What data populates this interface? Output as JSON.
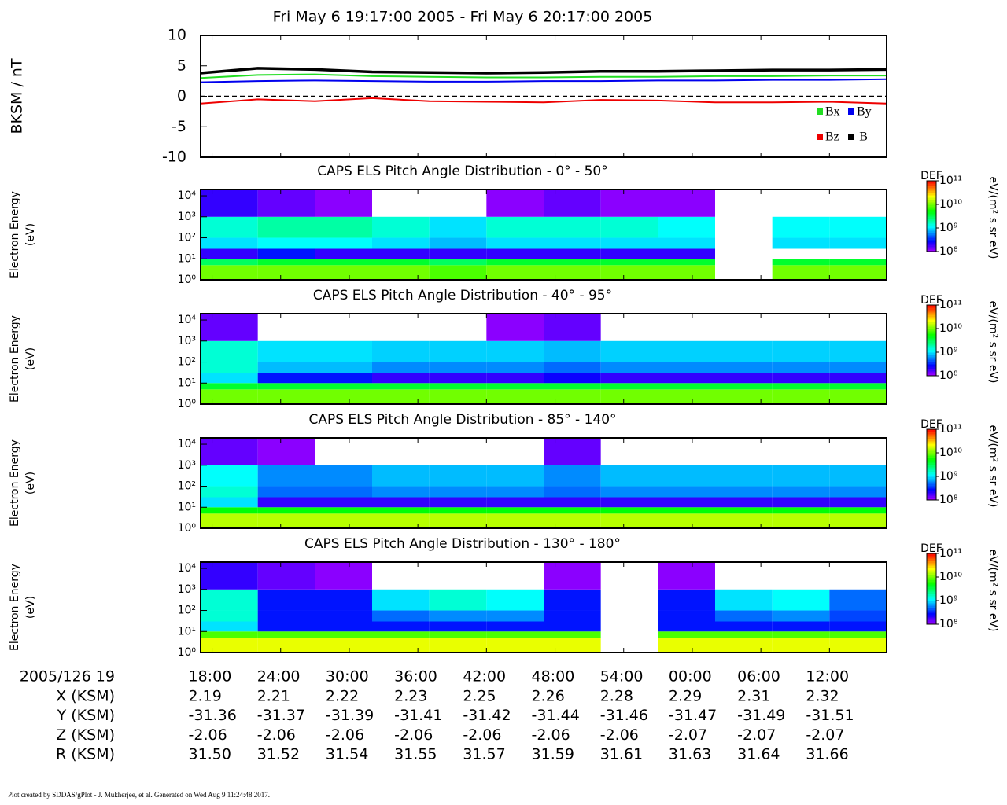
{
  "title": "Fri May 6 19:17:00 2005 - Fri May 6 20:17:00 2005",
  "chart_data": [
    {
      "type": "line",
      "ylabel": "BKSM / nT",
      "xlim": [
        17,
        77
      ],
      "ylim": [
        -10,
        10
      ],
      "yticks": [
        -10,
        -5,
        0,
        5,
        10
      ],
      "x": [
        17,
        22,
        27,
        32,
        37,
        42,
        47,
        52,
        57,
        62,
        67,
        72,
        77
      ],
      "series": [
        {
          "name": "Bx",
          "color": "#22dd22",
          "values": [
            3.0,
            3.5,
            3.6,
            3.3,
            3.2,
            3.1,
            3.1,
            3.2,
            3.2,
            3.3,
            3.3,
            3.4,
            3.4
          ]
        },
        {
          "name": "By",
          "color": "#0000ee",
          "values": [
            2.3,
            2.5,
            2.6,
            2.5,
            2.4,
            2.4,
            2.5,
            2.5,
            2.6,
            2.6,
            2.7,
            2.7,
            2.8
          ]
        },
        {
          "name": "Bz",
          "color": "#ee0000",
          "values": [
            -1.2,
            -0.5,
            -0.8,
            -0.3,
            -0.8,
            -0.9,
            -1.0,
            -0.6,
            -0.7,
            -1.0,
            -1.0,
            -0.9,
            -1.2
          ]
        },
        {
          "name": "|B|",
          "color": "#000000",
          "values": [
            3.8,
            4.6,
            4.4,
            4.0,
            3.9,
            3.8,
            3.9,
            4.1,
            4.1,
            4.2,
            4.3,
            4.3,
            4.4
          ]
        }
      ]
    },
    {
      "type": "spectrogram",
      "title": "CAPS ELS Pitch Angle Distribution - 0° - 50°",
      "ylabel": [
        "Electron Energy",
        "(eV)"
      ],
      "log_y": true,
      "xlim": [
        17,
        77
      ],
      "ylim": [
        1,
        20000
      ],
      "yticks": [
        {
          "value": 1,
          "label": "10⁰"
        },
        {
          "value": 10,
          "label": "10¹"
        },
        {
          "value": 100,
          "label": "10²"
        },
        {
          "value": 1000,
          "label": "10³"
        },
        {
          "value": 10000,
          "label": "10⁴"
        }
      ],
      "time_bins": [
        17,
        22,
        27,
        32,
        37,
        42,
        47,
        52,
        57,
        62,
        67,
        72,
        77
      ],
      "energy_bins": [
        1,
        5,
        10,
        30,
        100,
        1000,
        20000
      ],
      "z": [
        [
          10000000000.0,
          10000000000.0,
          10000000000.0,
          10000000000.0,
          8000000000.0,
          10000000000.0,
          10000000000.0,
          10000000000.0,
          10000000000.0,
          null,
          10000000000.0,
          10000000000.0
        ],
        [
          3000000000.0,
          4000000000.0,
          4000000000.0,
          4000000000.0,
          3000000000.0,
          4000000000.0,
          4000000000.0,
          4000000000.0,
          4000000000.0,
          null,
          4000000000.0,
          4000000000.0
        ],
        [
          200000000.0,
          300000000.0,
          200000000.0,
          200000000.0,
          200000000.0,
          200000000.0,
          200000000.0,
          200000000.0,
          200000000.0,
          null,
          null,
          null
        ],
        [
          1000000000.0,
          1200000000.0,
          1200000000.0,
          1000000000.0,
          800000000.0,
          1000000000.0,
          1000000000.0,
          1000000000.0,
          1000000000.0,
          null,
          1000000000.0,
          1000000000.0
        ],
        [
          1500000000.0,
          2000000000.0,
          2000000000.0,
          1500000000.0,
          1000000000.0,
          1500000000.0,
          1500000000.0,
          1500000000.0,
          1200000000.0,
          null,
          1200000000.0,
          1200000000.0
        ],
        [
          200000000.0,
          150000000.0,
          120000000.0,
          null,
          null,
          120000000.0,
          150000000.0,
          120000000.0,
          120000000.0,
          null,
          null,
          null
        ]
      ],
      "zlim": [
        100000000.0,
        100000000000.0
      ],
      "zticks": [
        {
          "value": 100000000.0,
          "label": "10⁸"
        },
        {
          "value": 1000000000.0,
          "label": "10⁹"
        },
        {
          "value": 10000000000.0,
          "label": "10¹⁰"
        },
        {
          "value": 100000000000.0,
          "label": "10¹¹"
        }
      ],
      "zlabel": "DEF",
      "zunit": "eV/(m² s sr eV)"
    },
    {
      "type": "spectrogram",
      "title": "CAPS ELS Pitch Angle Distribution - 40° - 95°",
      "ylabel": [
        "Electron Energy",
        "(eV)"
      ],
      "log_y": true,
      "xlim": [
        17,
        77
      ],
      "ylim": [
        1,
        20000
      ],
      "yticks": [
        {
          "value": 1,
          "label": "10⁰"
        },
        {
          "value": 10,
          "label": "10¹"
        },
        {
          "value": 100,
          "label": "10²"
        },
        {
          "value": 1000,
          "label": "10³"
        },
        {
          "value": 10000,
          "label": "10⁴"
        }
      ],
      "time_bins": [
        17,
        22,
        27,
        32,
        37,
        42,
        47,
        52,
        57,
        62,
        67,
        72,
        77
      ],
      "energy_bins": [
        1,
        5,
        10,
        30,
        100,
        1000,
        20000
      ],
      "z": [
        [
          10000000000.0,
          10000000000.0,
          10000000000.0,
          10000000000.0,
          10000000000.0,
          10000000000.0,
          10000000000.0,
          10000000000.0,
          10000000000.0,
          10000000000.0,
          10000000000.0,
          10000000000.0
        ],
        [
          4000000000.0,
          4000000000.0,
          4000000000.0,
          4000000000.0,
          4000000000.0,
          4000000000.0,
          4000000000.0,
          4000000000.0,
          4000000000.0,
          4000000000.0,
          4000000000.0,
          4000000000.0
        ],
        [
          1000000000.0,
          300000000.0,
          300000000.0,
          200000000.0,
          200000000.0,
          200000000.0,
          250000000.0,
          200000000.0,
          200000000.0,
          200000000.0,
          200000000.0,
          200000000.0
        ],
        [
          1500000000.0,
          800000000.0,
          800000000.0,
          600000000.0,
          600000000.0,
          600000000.0,
          500000000.0,
          600000000.0,
          600000000.0,
          600000000.0,
          600000000.0,
          600000000.0
        ],
        [
          1500000000.0,
          1000000000.0,
          1000000000.0,
          900000000.0,
          900000000.0,
          900000000.0,
          800000000.0,
          900000000.0,
          900000000.0,
          900000000.0,
          900000000.0,
          900000000.0
        ],
        [
          150000000.0,
          null,
          null,
          null,
          null,
          120000000.0,
          150000000.0,
          null,
          null,
          null,
          null,
          null
        ]
      ],
      "zlim": [
        100000000.0,
        100000000000.0
      ],
      "zticks": [
        {
          "value": 100000000.0,
          "label": "10⁸"
        },
        {
          "value": 1000000000.0,
          "label": "10⁹"
        },
        {
          "value": 10000000000.0,
          "label": "10¹⁰"
        },
        {
          "value": 100000000000.0,
          "label": "10¹¹"
        }
      ],
      "zlabel": "DEF",
      "zunit": "eV/(m² s sr eV)"
    },
    {
      "type": "spectrogram",
      "title": "CAPS ELS Pitch Angle Distribution - 85° - 140°",
      "ylabel": [
        "Electron Energy",
        "(eV)"
      ],
      "log_y": true,
      "xlim": [
        17,
        77
      ],
      "ylim": [
        1,
        20000
      ],
      "yticks": [
        {
          "value": 1,
          "label": "10⁰"
        },
        {
          "value": 10,
          "label": "10¹"
        },
        {
          "value": 100,
          "label": "10²"
        },
        {
          "value": 1000,
          "label": "10³"
        },
        {
          "value": 10000,
          "label": "10⁴"
        }
      ],
      "time_bins": [
        17,
        22,
        27,
        32,
        37,
        42,
        47,
        52,
        57,
        62,
        67,
        72,
        77
      ],
      "energy_bins": [
        1,
        5,
        10,
        30,
        100,
        1000,
        20000
      ],
      "z": [
        [
          15000000000.0,
          15000000000.0,
          15000000000.0,
          15000000000.0,
          15000000000.0,
          15000000000.0,
          15000000000.0,
          15000000000.0,
          15000000000.0,
          15000000000.0,
          15000000000.0,
          15000000000.0
        ],
        [
          5000000000.0,
          5000000000.0,
          5000000000.0,
          5000000000.0,
          5000000000.0,
          5000000000.0,
          5000000000.0,
          5000000000.0,
          5000000000.0,
          5000000000.0,
          5000000000.0,
          5000000000.0
        ],
        [
          1000000000.0,
          200000000.0,
          200000000.0,
          200000000.0,
          200000000.0,
          200000000.0,
          200000000.0,
          200000000.0,
          200000000.0,
          200000000.0,
          200000000.0,
          200000000.0
        ],
        [
          1500000000.0,
          500000000.0,
          500000000.0,
          600000000.0,
          600000000.0,
          600000000.0,
          500000000.0,
          600000000.0,
          600000000.0,
          600000000.0,
          600000000.0,
          600000000.0
        ],
        [
          1200000000.0,
          600000000.0,
          600000000.0,
          800000000.0,
          800000000.0,
          800000000.0,
          600000000.0,
          800000000.0,
          800000000.0,
          800000000.0,
          800000000.0,
          800000000.0
        ],
        [
          150000000.0,
          120000000.0,
          null,
          null,
          null,
          null,
          150000000.0,
          null,
          null,
          null,
          null,
          null
        ]
      ],
      "zlim": [
        100000000.0,
        100000000000.0
      ],
      "zticks": [
        {
          "value": 100000000.0,
          "label": "10⁸"
        },
        {
          "value": 1000000000.0,
          "label": "10⁹"
        },
        {
          "value": 10000000000.0,
          "label": "10¹⁰"
        },
        {
          "value": 100000000000.0,
          "label": "10¹¹"
        }
      ],
      "zlabel": "DEF",
      "zunit": "eV/(m² s sr eV)"
    },
    {
      "type": "spectrogram",
      "title": "CAPS ELS Pitch Angle Distribution - 130° - 180°",
      "ylabel": [
        "Electron Energy",
        "(eV)"
      ],
      "log_y": true,
      "xlim": [
        17,
        77
      ],
      "ylim": [
        1,
        20000
      ],
      "yticks": [
        {
          "value": 1,
          "label": "10⁰"
        },
        {
          "value": 10,
          "label": "10¹"
        },
        {
          "value": 100,
          "label": "10²"
        },
        {
          "value": 1000,
          "label": "10³"
        },
        {
          "value": 10000,
          "label": "10⁴"
        }
      ],
      "time_bins": [
        17,
        22,
        27,
        32,
        37,
        42,
        47,
        52,
        57,
        62,
        67,
        72,
        77
      ],
      "energy_bins": [
        1,
        5,
        10,
        30,
        100,
        1000,
        20000
      ],
      "z": [
        [
          20000000000.0,
          20000000000.0,
          20000000000.0,
          20000000000.0,
          20000000000.0,
          20000000000.0,
          20000000000.0,
          null,
          20000000000.0,
          20000000000.0,
          20000000000.0,
          20000000000.0
        ],
        [
          8000000000.0,
          8000000000.0,
          8000000000.0,
          8000000000.0,
          8000000000.0,
          8000000000.0,
          8000000000.0,
          null,
          8000000000.0,
          8000000000.0,
          8000000000.0,
          8000000000.0
        ],
        [
          1000000000.0,
          300000000.0,
          300000000.0,
          300000000.0,
          300000000.0,
          300000000.0,
          300000000.0,
          null,
          300000000.0,
          300000000.0,
          300000000.0,
          300000000.0
        ],
        [
          1500000000.0,
          300000000.0,
          300000000.0,
          500000000.0,
          600000000.0,
          600000000.0,
          300000000.0,
          null,
          300000000.0,
          500000000.0,
          600000000.0,
          400000000.0
        ],
        [
          1500000000.0,
          300000000.0,
          300000000.0,
          1000000000.0,
          1500000000.0,
          1200000000.0,
          300000000.0,
          null,
          300000000.0,
          1000000000.0,
          1200000000.0,
          500000000.0
        ],
        [
          200000000.0,
          150000000.0,
          120000000.0,
          null,
          null,
          null,
          120000000.0,
          null,
          120000000.0,
          null,
          null,
          null
        ]
      ],
      "zlim": [
        100000000.0,
        100000000000.0
      ],
      "zticks": [
        {
          "value": 100000000.0,
          "label": "10⁸"
        },
        {
          "value": 1000000000.0,
          "label": "10⁹"
        },
        {
          "value": 10000000000.0,
          "label": "10¹⁰"
        },
        {
          "value": 100000000000.0,
          "label": "10¹¹"
        }
      ],
      "zlabel": "DEF",
      "zunit": "eV/(m² s sr eV)"
    }
  ],
  "ephemeris": {
    "time": {
      "label": "2005/126 19",
      "ticks": [
        {
          "value": 18,
          "label": "18:00"
        },
        {
          "value": 24,
          "label": "24:00"
        },
        {
          "value": 30,
          "label": "30:00"
        },
        {
          "value": 36,
          "label": "36:00"
        },
        {
          "value": 42,
          "label": "42:00"
        },
        {
          "value": 48,
          "label": "48:00"
        },
        {
          "value": 54,
          "label": "54:00"
        },
        {
          "value": 60,
          "label": "00:00"
        },
        {
          "value": 66,
          "label": "06:00"
        },
        {
          "value": 72,
          "label": "12:00"
        }
      ]
    },
    "rows": [
      {
        "label": "X (KSM)",
        "values": [
          "2.19",
          "2.21",
          "2.22",
          "2.23",
          "2.25",
          "2.26",
          "2.28",
          "2.29",
          "2.31",
          "2.32"
        ]
      },
      {
        "label": "Y (KSM)",
        "values": [
          "-31.36",
          "-31.37",
          "-31.39",
          "-31.41",
          "-31.42",
          "-31.44",
          "-31.46",
          "-31.47",
          "-31.49",
          "-31.51"
        ]
      },
      {
        "label": "Z (KSM)",
        "values": [
          "-2.06",
          "-2.06",
          "-2.06",
          "-2.06",
          "-2.06",
          "-2.06",
          "-2.06",
          "-2.07",
          "-2.07",
          "-2.07"
        ]
      },
      {
        "label": "R (KSM)",
        "values": [
          "31.50",
          "31.52",
          "31.54",
          "31.55",
          "31.57",
          "31.59",
          "31.61",
          "31.63",
          "31.64",
          "31.66"
        ]
      }
    ]
  },
  "footer": "Plot created by SDDAS/gPlot - J. Mukherjee, et al.  Generated on Wed Aug 9 11:24:48 2017."
}
